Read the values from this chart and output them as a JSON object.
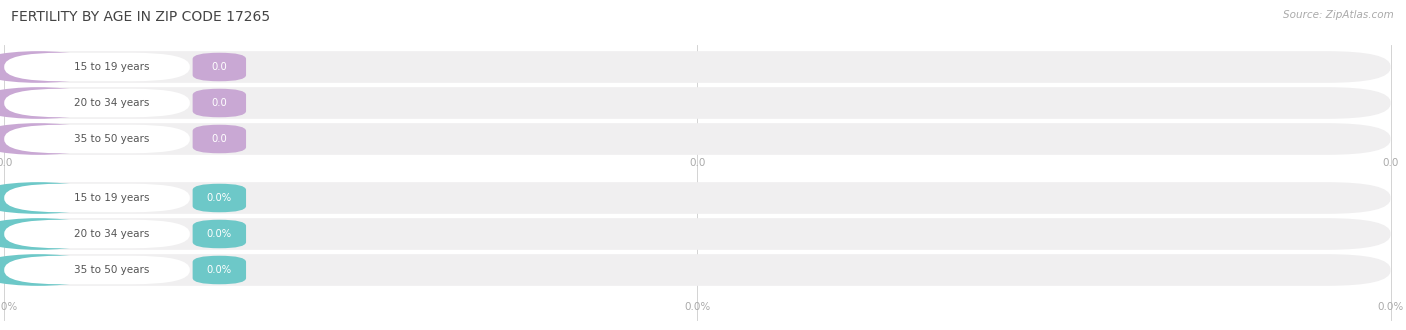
{
  "title": "FERTILITY BY AGE IN ZIP CODE 17265",
  "source": "Source: ZipAtlas.com",
  "group1_labels": [
    "15 to 19 years",
    "20 to 34 years",
    "35 to 50 years"
  ],
  "group2_labels": [
    "15 to 19 years",
    "20 to 34 years",
    "35 to 50 years"
  ],
  "group1_value_labels": [
    "0.0",
    "0.0",
    "0.0"
  ],
  "group2_value_labels": [
    "0.0%",
    "0.0%",
    "0.0%"
  ],
  "group1_color": "#c9a8d4",
  "group2_color": "#6dc8c8",
  "bar_bg_color": "#f0eff0",
  "bg_color": "#ffffff",
  "title_color": "#444444",
  "tick_label_color": "#aaaaaa",
  "source_color": "#aaaaaa",
  "label_text_color": "#555555",
  "figsize": [
    14.06,
    3.3
  ],
  "dpi": 100
}
